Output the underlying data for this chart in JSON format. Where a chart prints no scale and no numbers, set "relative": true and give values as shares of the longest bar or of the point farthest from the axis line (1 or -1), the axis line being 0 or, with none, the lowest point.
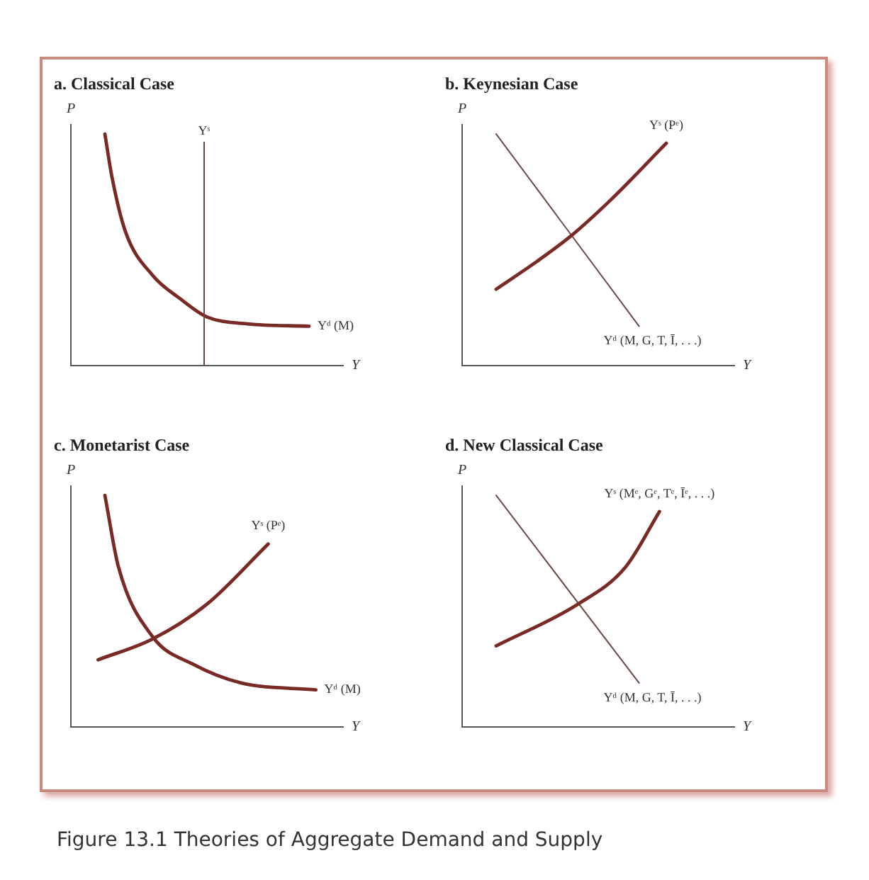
{
  "chart_data": [
    {
      "type": "line",
      "title": "a. Classical Case",
      "xlabel": "Y",
      "ylabel": "P",
      "relative": true,
      "tick_labels": false,
      "legend": false,
      "categories": [
        null,
        null,
        null,
        null,
        null,
        null,
        null,
        null,
        null,
        null,
        null,
        null,
        null,
        null,
        null,
        null,
        null,
        null,
        null,
        null,
        null,
        null,
        null,
        null,
        null,
        null,
        null,
        null,
        null,
        null,
        null,
        null,
        null,
        null,
        null,
        null,
        null,
        null,
        null,
        null,
        null
      ],
      "annotations": [
        "Yˢ"
      ],
      "series": [
        {
          "name": "Yᵈ (M)",
          "color": "#7a2a25",
          "values": [
            null,
            null,
            null,
            null,
            null,
            1.0,
            0.82,
            null,
            0.58,
            null,
            null,
            null,
            0.39,
            null,
            null,
            null,
            0.29,
            null,
            null,
            null,
            0.21,
            null,
            null,
            null,
            null,
            null,
            0.18,
            null,
            null,
            null,
            null,
            null,
            null,
            null,
            null,
            0.17,
            null,
            null,
            null,
            null,
            null
          ]
        }
      ]
    },
    {
      "type": "line",
      "title": "b. Keynesian Case",
      "xlabel": "Y",
      "ylabel": "P",
      "relative": true,
      "tick_labels": false,
      "legend": false,
      "categories": [
        null,
        null,
        null,
        null,
        null,
        null,
        null,
        null,
        null,
        null,
        null,
        null,
        null,
        null,
        null,
        null,
        null,
        null,
        null,
        null,
        null,
        null,
        null,
        null,
        null,
        null,
        null,
        null,
        null,
        null,
        null,
        null,
        null,
        null,
        null,
        null,
        null,
        null,
        null,
        null,
        null
      ],
      "series": [
        {
          "name": "Yˢ (Pᵉ)",
          "color": "#7a2a25",
          "values": [
            null,
            null,
            null,
            null,
            null,
            0.33,
            null,
            null,
            null,
            null,
            null,
            0.45,
            null,
            null,
            null,
            null,
            0.56,
            null,
            null,
            null,
            null,
            null,
            0.72,
            null,
            null,
            null,
            null,
            null,
            null,
            null,
            0.96,
            null,
            null,
            null,
            null,
            null,
            null,
            null,
            null,
            null,
            null
          ]
        },
        {
          "name": "Yᵈ (M, G, T, Ī, . . .)",
          "color": "#6b4a45",
          "values": [
            null,
            null,
            null,
            null,
            null,
            1.0,
            null,
            null,
            null,
            null,
            null,
            null,
            null,
            null,
            null,
            null,
            null,
            null,
            null,
            null,
            null,
            null,
            null,
            null,
            null,
            null,
            0.17,
            null,
            null,
            null,
            null,
            null,
            null,
            null,
            null,
            null,
            null,
            null,
            null,
            null,
            null
          ]
        }
      ]
    },
    {
      "type": "line",
      "title": "c. Monetarist Case",
      "xlabel": "Y",
      "ylabel": "P",
      "relative": true,
      "tick_labels": false,
      "legend": false,
      "categories": [
        null,
        null,
        null,
        null,
        null,
        null,
        null,
        null,
        null,
        null,
        null,
        null,
        null,
        null,
        null,
        null,
        null,
        null,
        null,
        null,
        null,
        null,
        null,
        null,
        null,
        null,
        null,
        null,
        null,
        null,
        null,
        null,
        null,
        null,
        null,
        null,
        null,
        null,
        null,
        null,
        null
      ],
      "series": [
        {
          "name": "Yˢ (Pᵉ)",
          "color": "#7a2a25",
          "values": [
            null,
            null,
            null,
            null,
            0.29,
            null,
            null,
            null,
            null,
            null,
            null,
            null,
            0.38,
            null,
            null,
            null,
            null,
            null,
            null,
            null,
            0.53,
            null,
            null,
            null,
            null,
            null,
            null,
            null,
            null,
            0.79,
            null,
            null,
            null,
            null,
            null,
            null,
            null,
            null,
            null,
            null,
            null
          ]
        },
        {
          "name": "Yᵈ (M)",
          "color": "#7a2a25",
          "values": [
            null,
            null,
            null,
            null,
            null,
            1.0,
            null,
            0.69,
            null,
            null,
            null,
            null,
            0.39,
            null,
            null,
            null,
            null,
            null,
            0.27,
            null,
            null,
            null,
            null,
            null,
            null,
            0.19,
            null,
            null,
            null,
            null,
            null,
            null,
            null,
            null,
            null,
            null,
            0.16,
            null,
            null,
            null,
            null
          ]
        }
      ]
    },
    {
      "type": "line",
      "title": "d. New Classical Case",
      "xlabel": "Y",
      "ylabel": "P",
      "relative": true,
      "tick_labels": false,
      "legend": false,
      "annotations": [
        "Figure 13.1  Theories of Aggregate Demand and Supply"
      ],
      "categories": [
        null,
        null,
        null,
        null,
        null,
        null,
        null,
        null,
        null,
        null,
        null,
        null,
        null,
        null,
        null,
        null,
        null,
        null,
        null,
        null,
        null,
        null,
        null,
        null,
        null,
        null,
        null,
        null,
        null,
        null,
        null,
        null,
        null,
        null,
        null,
        null,
        null,
        null,
        null,
        null,
        null
      ],
      "series": [
        {
          "name": "Yˢ (Mᵉ, Gᵉ, Tᵉ, Īᵉ, . . .)",
          "color": "#7a2a25",
          "values": [
            null,
            null,
            null,
            null,
            null,
            0.35,
            null,
            null,
            null,
            null,
            null,
            null,
            null,
            null,
            null,
            null,
            null,
            0.53,
            null,
            null,
            null,
            null,
            null,
            null,
            0.69,
            null,
            null,
            null,
            null,
            0.93,
            null,
            null,
            null,
            null,
            null,
            null,
            null,
            null,
            null,
            null,
            null
          ]
        },
        {
          "name": "Yᵈ (M, G, T, Ī, . . .)",
          "color": "#6b4a45",
          "values": [
            null,
            null,
            null,
            null,
            null,
            1.0,
            null,
            null,
            null,
            null,
            null,
            null,
            null,
            null,
            null,
            null,
            null,
            null,
            null,
            null,
            null,
            null,
            null,
            null,
            null,
            null,
            0.19,
            null,
            null,
            null,
            null,
            null,
            null,
            null,
            null,
            null,
            null,
            null,
            null,
            null,
            null
          ]
        }
      ]
    }
  ]
}
